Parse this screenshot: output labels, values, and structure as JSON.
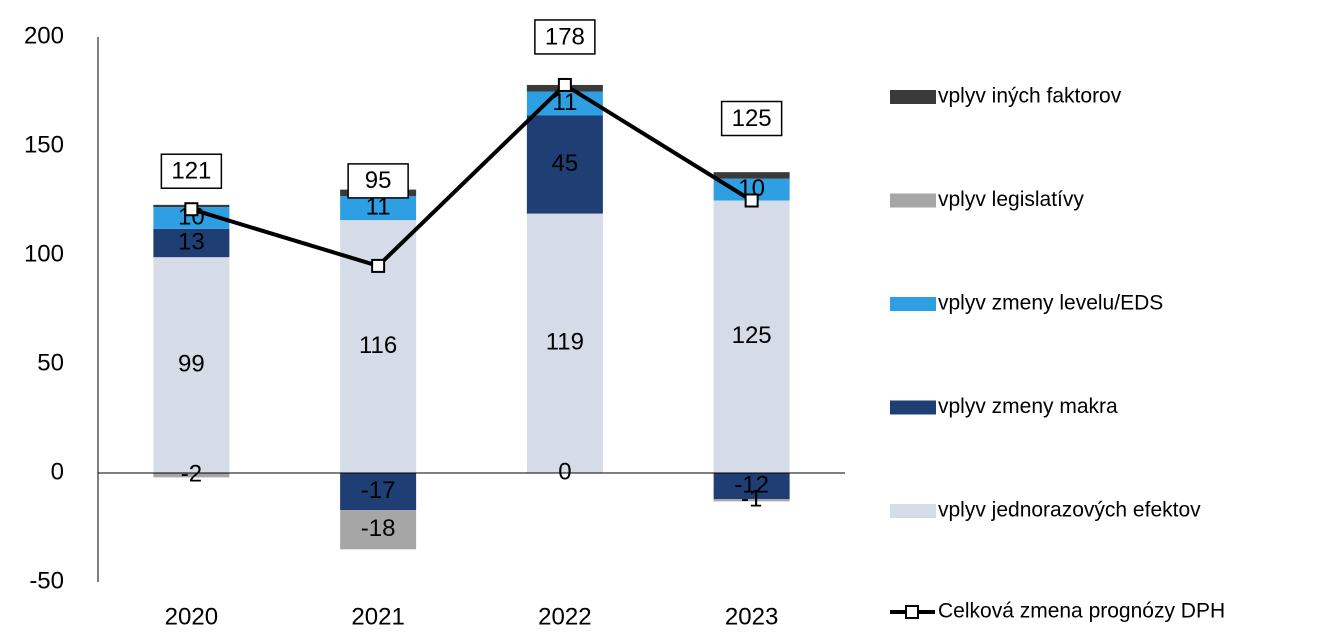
{
  "chart_data": {
    "type": "stacked-bar-line",
    "categories": [
      "2020",
      "2021",
      "2022",
      "2023"
    ],
    "ylim": [
      -50,
      200
    ],
    "yticks": [
      -50,
      0,
      50,
      100,
      150,
      200
    ],
    "series": [
      {
        "name": "vplyv jednorazových efektov",
        "color": "#d6dce7",
        "values": [
          99,
          116,
          119,
          125
        ],
        "labels": true,
        "label_color": "#000000"
      },
      {
        "name": "vplyv zmeny makra",
        "color": "#1f3f74",
        "values": [
          13,
          -17,
          45,
          -12
        ],
        "labels": true,
        "label_color": "#ffffff"
      },
      {
        "name": "vplyv zmeny levelu/EDS",
        "color": "#2e9fe2",
        "values": [
          10,
          11,
          11,
          10
        ],
        "labels": true,
        "label_color": "#000000"
      },
      {
        "name": "vplyv legislatívy",
        "color": "#a6a6a6",
        "values": [
          -2,
          -18,
          0,
          -1
        ],
        "labels": true,
        "label_color": "#000000"
      },
      {
        "name": "vplyv iných faktorov",
        "color": "#3a3a3a",
        "values": [
          1,
          3,
          3,
          3
        ],
        "labels": false,
        "label_color": "#ffffff"
      }
    ],
    "line": {
      "name": "Celková zmena prognózy DPH",
      "color": "#000000",
      "values": [
        121,
        95,
        178,
        125
      ]
    }
  }
}
